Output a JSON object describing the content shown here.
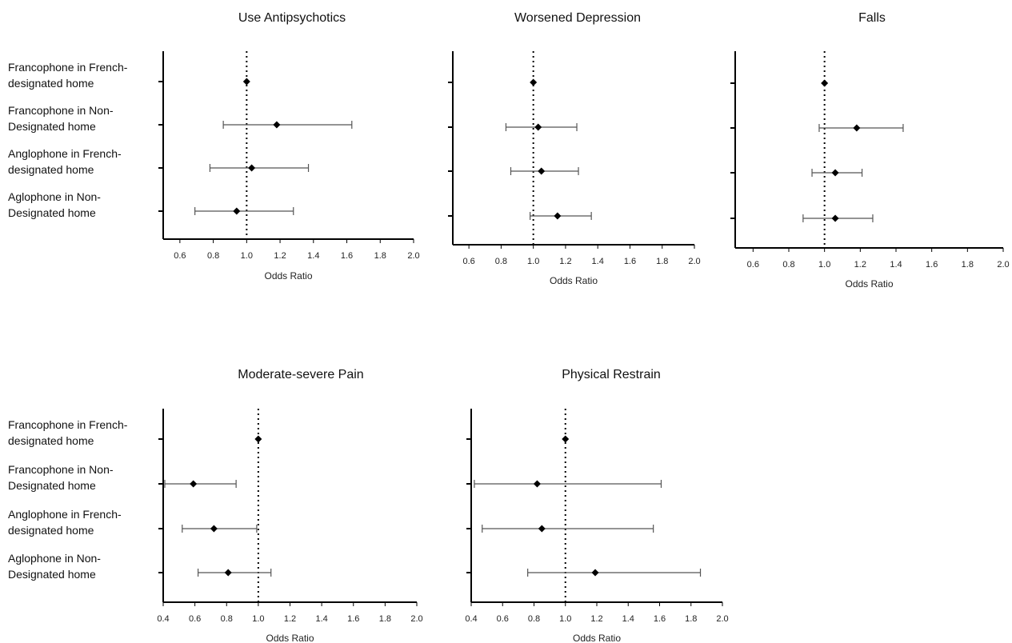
{
  "chart_data": [
    {
      "type": "forest",
      "title": "Use Antipsychotics",
      "xlabel": "Odds Ratio",
      "xlim": [
        0.5,
        2.0
      ],
      "xticks": [
        "0.6",
        "0.8",
        "1.0",
        "1.2",
        "1.4",
        "1.6",
        "1.8",
        "2.0"
      ],
      "reference_line": 1.0,
      "show_row_labels": true,
      "rows": [
        {
          "label_lines": [
            "Francophone in French-",
            "designated home"
          ],
          "or": 1.0,
          "ci": null
        },
        {
          "label_lines": [
            "Francophone in Non-",
            "Designated home"
          ],
          "or": 1.18,
          "ci": [
            0.86,
            1.63
          ]
        },
        {
          "label_lines": [
            "Anglophone in French-",
            "designated home"
          ],
          "or": 1.03,
          "ci": [
            0.78,
            1.37
          ]
        },
        {
          "label_lines": [
            "Aglophone in Non-",
            "Designated home"
          ],
          "or": 0.94,
          "ci": [
            0.69,
            1.28
          ]
        }
      ]
    },
    {
      "type": "forest",
      "title": "Worsened Depression",
      "xlabel": "Odds Ratio",
      "xlim": [
        0.5,
        2.0
      ],
      "xticks": [
        "0.6",
        "0.8",
        "1.0",
        "1.2",
        "1.4",
        "1.6",
        "1.8",
        "2.0"
      ],
      "reference_line": 1.0,
      "show_row_labels": false,
      "rows": [
        {
          "label_lines": [
            "Francophone in French-",
            "designated home"
          ],
          "or": 1.0,
          "ci": null
        },
        {
          "label_lines": [
            "Francophone in Non-",
            "Designated home"
          ],
          "or": 1.03,
          "ci": [
            0.83,
            1.27
          ]
        },
        {
          "label_lines": [
            "Anglophone in French-",
            "designated home"
          ],
          "or": 1.05,
          "ci": [
            0.86,
            1.28
          ]
        },
        {
          "label_lines": [
            "Aglophone in Non-",
            "Designated home"
          ],
          "or": 1.15,
          "ci": [
            0.98,
            1.36
          ]
        }
      ]
    },
    {
      "type": "forest",
      "title": "Falls",
      "xlabel": "Odds Ratio",
      "xlim": [
        0.5,
        2.0
      ],
      "xticks": [
        "0.6",
        "0.8",
        "1.0",
        "1.2",
        "1.4",
        "1.6",
        "1.8",
        "2.0"
      ],
      "reference_line": 1.0,
      "show_row_labels": false,
      "rows": [
        {
          "label_lines": [
            "Francophone in French-",
            "designated home"
          ],
          "or": 1.0,
          "ci": null
        },
        {
          "label_lines": [
            "Francophone in Non-",
            "Designated home"
          ],
          "or": 1.18,
          "ci": [
            0.97,
            1.44
          ]
        },
        {
          "label_lines": [
            "Anglophone in French-",
            "designated home"
          ],
          "or": 1.06,
          "ci": [
            0.93,
            1.21
          ]
        },
        {
          "label_lines": [
            "Aglophone in Non-",
            "Designated home"
          ],
          "or": 1.06,
          "ci": [
            0.88,
            1.27
          ]
        }
      ]
    },
    {
      "type": "forest",
      "title": "Moderate-severe Pain",
      "xlabel": "Odds Ratio",
      "xlim": [
        0.4,
        2.0
      ],
      "xticks": [
        "0.4",
        "0.6",
        "0.8",
        "1.0",
        "1.2",
        "1.4",
        "1.6",
        "1.8",
        "2.0"
      ],
      "reference_line": 1.0,
      "show_row_labels": true,
      "rows": [
        {
          "label_lines": [
            "Francophone in French-",
            "designated home"
          ],
          "or": 1.0,
          "ci": null
        },
        {
          "label_lines": [
            "Francophone in Non-",
            "Designated home"
          ],
          "or": 0.59,
          "ci": [
            0.41,
            0.86
          ]
        },
        {
          "label_lines": [
            "Anglophone in French-",
            "designated home"
          ],
          "or": 0.72,
          "ci": [
            0.52,
            0.99
          ]
        },
        {
          "label_lines": [
            "Aglophone in Non-",
            "Designated home"
          ],
          "or": 0.81,
          "ci": [
            0.62,
            1.08
          ]
        }
      ]
    },
    {
      "type": "forest",
      "title": "Physical Restrain",
      "xlabel": "Odds Ratio",
      "xlim": [
        0.4,
        2.0
      ],
      "xticks": [
        "0.4",
        "0.6",
        "0.8",
        "1.0",
        "1.2",
        "1.4",
        "1.6",
        "1.8",
        "2.0"
      ],
      "reference_line": 1.0,
      "show_row_labels": false,
      "rows": [
        {
          "label_lines": [
            "Francophone in French-",
            "designated home"
          ],
          "or": 1.0,
          "ci": null
        },
        {
          "label_lines": [
            "Francophone in Non-",
            "Designated home"
          ],
          "or": 0.82,
          "ci": [
            0.42,
            1.61
          ]
        },
        {
          "label_lines": [
            "Anglophone in French-",
            "designated home"
          ],
          "or": 0.85,
          "ci": [
            0.47,
            1.56
          ]
        },
        {
          "label_lines": [
            "Aglophone in Non-",
            "Designated home"
          ],
          "or": 1.19,
          "ci": [
            0.76,
            1.86
          ]
        }
      ]
    }
  ]
}
